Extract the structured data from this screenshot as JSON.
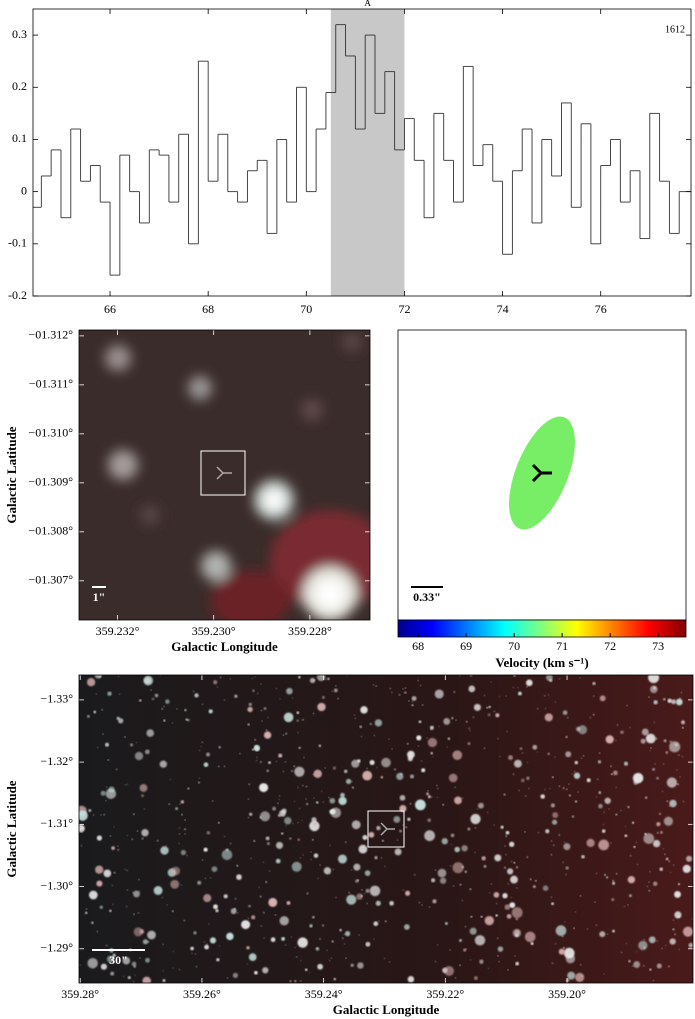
{
  "chart_data": [
    {
      "type": "step",
      "x": [
        64.5,
        64.7,
        64.9,
        65.1,
        65.3,
        65.5,
        65.7,
        65.9,
        66.1,
        66.3,
        66.5,
        66.7,
        66.9,
        67.1,
        67.3,
        67.5,
        67.7,
        67.9,
        68.1,
        68.3,
        68.5,
        68.7,
        68.9,
        69.1,
        69.3,
        69.5,
        69.7,
        69.9,
        70.1,
        70.3,
        70.5,
        70.7,
        70.9,
        71.1,
        71.3,
        71.5,
        71.7,
        71.9,
        72.1,
        72.3,
        72.5,
        72.7,
        72.9,
        73.1,
        73.3,
        73.5,
        73.7,
        73.9,
        74.1,
        74.3,
        74.5,
        74.7,
        74.9,
        75.1,
        75.3,
        75.5,
        75.7,
        75.9,
        76.1,
        76.3,
        76.5,
        76.7,
        76.9,
        77.1,
        77.3,
        77.5,
        77.7
      ],
      "values": [
        -0.03,
        0.03,
        0.08,
        -0.05,
        0.12,
        0.02,
        0.05,
        -0.02,
        -0.16,
        0.07,
        0.0,
        -0.06,
        0.08,
        0.07,
        -0.02,
        0.11,
        -0.1,
        0.25,
        0.02,
        0.11,
        0.0,
        -0.02,
        0.04,
        0.06,
        -0.08,
        0.1,
        -0.02,
        0.2,
        0.0,
        0.12,
        0.19,
        0.32,
        0.26,
        0.12,
        0.3,
        0.15,
        0.23,
        0.08,
        0.14,
        0.06,
        -0.05,
        0.15,
        0.06,
        -0.02,
        0.24,
        0.05,
        0.09,
        0.02,
        -0.12,
        0.04,
        0.12,
        -0.06,
        0.1,
        0.03,
        0.17,
        -0.03,
        0.13,
        -0.1,
        0.05,
        0.1,
        -0.02,
        0.04,
        -0.09,
        0.15,
        0.02,
        -0.08,
        0.0
      ],
      "color": "#333333",
      "xlim": [
        64.43,
        77.84
      ],
      "ylim": [
        -0.2,
        0.35
      ],
      "xticks": [
        66,
        68,
        70,
        72,
        74,
        76
      ],
      "yticks": [
        -0.2,
        -0.1,
        0,
        0.1,
        0.2,
        0.3
      ],
      "highlight": {
        "xrange": [
          70.5,
          72
        ],
        "label": "A",
        "color": "#c8c8c8"
      },
      "annotation": "1612"
    },
    {
      "type": "image",
      "xlim": [
        359.2328,
        359.22675
      ],
      "ylim": [
        -1.3062,
        -1.31212
      ],
      "xticks": [
        {
          "value": 359.232,
          "label": "359.232°"
        },
        {
          "value": 359.23,
          "label": "359.230°"
        },
        {
          "value": 359.228,
          "label": "359.228°"
        }
      ],
      "yticks": [
        {
          "value": -1.307,
          "label": "−01.307°"
        },
        {
          "value": -1.308,
          "label": "−01.308°"
        },
        {
          "value": -1.309,
          "label": "−01.309°"
        },
        {
          "value": -1.31,
          "label": "−01.310°"
        },
        {
          "value": -1.311,
          "label": "−01.311°"
        },
        {
          "value": -1.312,
          "label": "−01.312°"
        }
      ],
      "xlabel": "Galactic Longitude",
      "ylabel": "Galactic Latitude",
      "scalebar_label": "1\""
    },
    {
      "type": "colormap",
      "clim": [
        67.58,
        73.58
      ],
      "cticks": [
        68,
        69,
        70,
        71,
        72,
        73
      ],
      "clabel": "Velocity (km s⁻¹)",
      "scalebar_label": "0.33\"",
      "color": "#77ee66"
    },
    {
      "type": "image",
      "xlim": [
        359.2802,
        359.1793
      ],
      "ylim": [
        -1.2845,
        -1.334
      ],
      "xticks": [
        {
          "value": 359.28,
          "label": "359.28°"
        },
        {
          "value": 359.26,
          "label": "359.26°"
        },
        {
          "value": 359.24,
          "label": "359.24°"
        },
        {
          "value": 359.22,
          "label": "359.22°"
        },
        {
          "value": 359.2,
          "label": "359.20°"
        }
      ],
      "yticks": [
        {
          "value": -1.29,
          "label": "−1.29°"
        },
        {
          "value": -1.3,
          "label": "−1.30°"
        },
        {
          "value": -1.31,
          "label": "−1.31°"
        },
        {
          "value": -1.32,
          "label": "−1.32°"
        },
        {
          "value": -1.33,
          "label": "−1.33°"
        }
      ],
      "xlabel": "Galactic Longitude",
      "ylabel": "Galactic Latitude",
      "scalebar_label": "30\""
    }
  ]
}
